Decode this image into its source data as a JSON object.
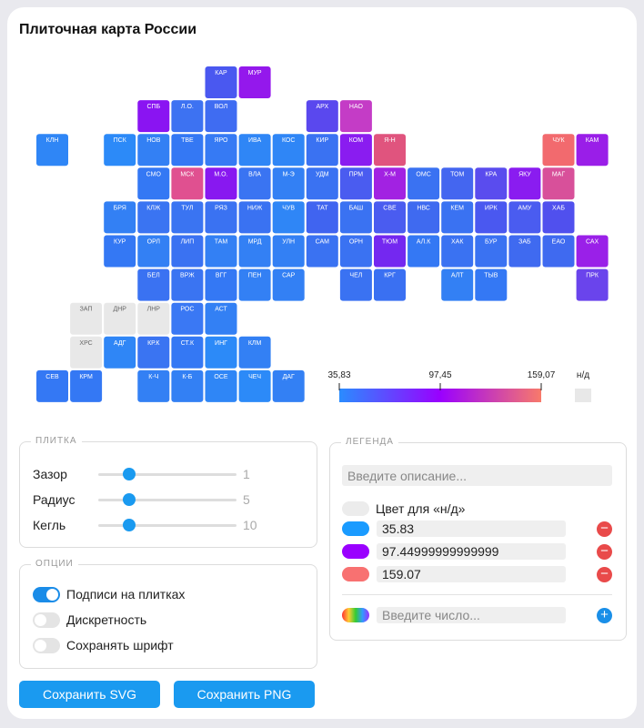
{
  "title": "Плиточная карта России",
  "tiles": [
    {
      "label": "КАР",
      "color": "#4a58f0"
    },
    {
      "label": "МУР",
      "color": "#9418ec"
    },
    {
      "label": "СПБ",
      "color": "#8a14f2"
    },
    {
      "label": "Л.О.",
      "color": "#3d72f2"
    },
    {
      "label": "ВОЛ",
      "color": "#3f6cf2"
    },
    {
      "label": "АРХ",
      "color": "#5a48ee"
    },
    {
      "label": "НАО",
      "color": "#c43cc6"
    },
    {
      "label": "КЛН",
      "color": "#2f86f6"
    },
    {
      "label": "ПСК",
      "color": "#2c8af8"
    },
    {
      "label": "НОВ",
      "color": "#3380f4"
    },
    {
      "label": "ТВЕ",
      "color": "#3478f4"
    },
    {
      "label": "ЯРО",
      "color": "#367af4"
    },
    {
      "label": "ИВА",
      "color": "#2f86f6"
    },
    {
      "label": "КОС",
      "color": "#2f86f6"
    },
    {
      "label": "КИР",
      "color": "#3a72f2"
    },
    {
      "label": "КОМ",
      "color": "#8a1cf0"
    },
    {
      "label": "Я-Н",
      "color": "#e0547e"
    },
    {
      "label": "ЧУК",
      "color": "#f26a6e"
    },
    {
      "label": "КАМ",
      "color": "#9a1ee8"
    },
    {
      "label": "СМО",
      "color": "#3478f4"
    },
    {
      "label": "МСК",
      "color": "#e05090"
    },
    {
      "label": "М.О.",
      "color": "#8818f0"
    },
    {
      "label": "ВЛА",
      "color": "#3a74f2"
    },
    {
      "label": "М-Э",
      "color": "#3380f4"
    },
    {
      "label": "УДМ",
      "color": "#3a72f2"
    },
    {
      "label": "ПРМ",
      "color": "#4a5cf0"
    },
    {
      "label": "Х-М",
      "color": "#a222e2"
    },
    {
      "label": "ОМС",
      "color": "#3a72f2"
    },
    {
      "label": "ТОМ",
      "color": "#4466f0"
    },
    {
      "label": "КРА",
      "color": "#5a4cee"
    },
    {
      "label": "ЯКУ",
      "color": "#8a1cf0"
    },
    {
      "label": "МАГ",
      "color": "#d8509a"
    },
    {
      "label": "БРЯ",
      "color": "#3380f4"
    },
    {
      "label": "КЛЖ",
      "color": "#3a74f2"
    },
    {
      "label": "ТУЛ",
      "color": "#3a74f2"
    },
    {
      "label": "РЯЗ",
      "color": "#3a72f2"
    },
    {
      "label": "НИЖ",
      "color": "#3a72f2"
    },
    {
      "label": "ЧУВ",
      "color": "#2f86f6"
    },
    {
      "label": "ТАТ",
      "color": "#4064f0"
    },
    {
      "label": "БАШ",
      "color": "#3a72f2"
    },
    {
      "label": "СВЕ",
      "color": "#4a5cf0"
    },
    {
      "label": "НВС",
      "color": "#3f6af0"
    },
    {
      "label": "КЕМ",
      "color": "#3a72f2"
    },
    {
      "label": "ИРК",
      "color": "#4a58f0"
    },
    {
      "label": "АМУ",
      "color": "#4a5cf0"
    },
    {
      "label": "ХАБ",
      "color": "#5050ee"
    },
    {
      "label": "КУР",
      "color": "#3478f4"
    },
    {
      "label": "ОРЛ",
      "color": "#3380f4"
    },
    {
      "label": "ЛИП",
      "color": "#3a72f2"
    },
    {
      "label": "ТАМ",
      "color": "#3380f4"
    },
    {
      "label": "МРД",
      "color": "#3380f4"
    },
    {
      "label": "УЛН",
      "color": "#3380f4"
    },
    {
      "label": "САМ",
      "color": "#3a72f2"
    },
    {
      "label": "ОРН",
      "color": "#3a72f2"
    },
    {
      "label": "ТЮМ",
      "color": "#7428f0"
    },
    {
      "label": "АЛ.К",
      "color": "#3478f4"
    },
    {
      "label": "ХАК",
      "color": "#3a72f2"
    },
    {
      "label": "БУР",
      "color": "#3a72f2"
    },
    {
      "label": "ЗАБ",
      "color": "#3f6af0"
    },
    {
      "label": "ЕАО",
      "color": "#3f6af0"
    },
    {
      "label": "САХ",
      "color": "#9a20e8"
    },
    {
      "label": "БЕЛ",
      "color": "#3a72f2"
    },
    {
      "label": "ВРЖ",
      "color": "#3a74f2"
    },
    {
      "label": "ВГГ",
      "color": "#3478f4"
    },
    {
      "label": "ПЕН",
      "color": "#3380f4"
    },
    {
      "label": "САР",
      "color": "#3380f4"
    },
    {
      "label": "ЧЕЛ",
      "color": "#3a72f2"
    },
    {
      "label": "КРГ",
      "color": "#3a70f2"
    },
    {
      "label": "АЛТ",
      "color": "#3380f4"
    },
    {
      "label": "ТЫВ",
      "color": "#3478f4"
    },
    {
      "label": "ПРК",
      "color": "#6a44ec"
    },
    {
      "label": "ЗАП",
      "color": "#e8e8e8"
    },
    {
      "label": "ДНР",
      "color": "#e8e8e8"
    },
    {
      "label": "ЛНР",
      "color": "#e8e8e8"
    },
    {
      "label": "РОС",
      "color": "#3a78f4"
    },
    {
      "label": "АСТ",
      "color": "#3380f4"
    },
    {
      "label": "ХРС",
      "color": "#e8e8e8"
    },
    {
      "label": "АДГ",
      "color": "#2f86f6"
    },
    {
      "label": "КР.К",
      "color": "#3a74f2"
    },
    {
      "label": "СТ.К",
      "color": "#3478f4"
    },
    {
      "label": "ИНГ",
      "color": "#2c8af8"
    },
    {
      "label": "КЛМ",
      "color": "#3380f4"
    },
    {
      "label": "СЕВ",
      "color": "#3478f4"
    },
    {
      "label": "КРМ",
      "color": "#3478f4"
    },
    {
      "label": "К-Ч",
      "color": "#3380f4"
    },
    {
      "label": "К-Б",
      "color": "#3380f4"
    },
    {
      "label": "ОСЕ",
      "color": "#2f86f6"
    },
    {
      "label": "ЧЕЧ",
      "color": "#2c8af8"
    },
    {
      "label": "ДАГ",
      "color": "#3380f4"
    }
  ],
  "scale": {
    "ticks": [
      {
        "value": 35.83,
        "label": "35,83"
      },
      {
        "value": 97.45,
        "label": "97,45"
      },
      {
        "value": 159.07,
        "label": "159,07"
      }
    ],
    "colors": [
      "#2a8cff",
      "#9a00ff",
      "#f87a6a"
    ],
    "na_label": "н/д",
    "na_color": "#e8e8e8"
  },
  "tile_panel": {
    "title": "ПЛИТКА",
    "sliders": [
      {
        "label": "Зазор",
        "value": 1
      },
      {
        "label": "Радиус",
        "value": 5
      },
      {
        "label": "Кегль",
        "value": 10
      }
    ]
  },
  "options_panel": {
    "title": "ОПЦИИ",
    "toggles": [
      {
        "label": "Подписи на плитках",
        "on": true
      },
      {
        "label": "Дискретность",
        "on": false
      },
      {
        "label": "Сохранять шрифт",
        "on": false
      }
    ]
  },
  "buttons": [
    "Сохранить SVG",
    "Сохранить PNG"
  ],
  "legend_panel": {
    "title": "ЛЕГЕНДА",
    "description_placeholder": "Введите описание...",
    "na_row_label": "Цвет для «н/д»",
    "na_color": "#ececec",
    "entries": [
      {
        "color": "#1a9bff",
        "value": 35.83
      },
      {
        "color": "#9a00ff",
        "value": 97.44999999999999
      },
      {
        "color": "#f87171",
        "value": 159.07
      }
    ],
    "number_placeholder": "Введите число..."
  }
}
